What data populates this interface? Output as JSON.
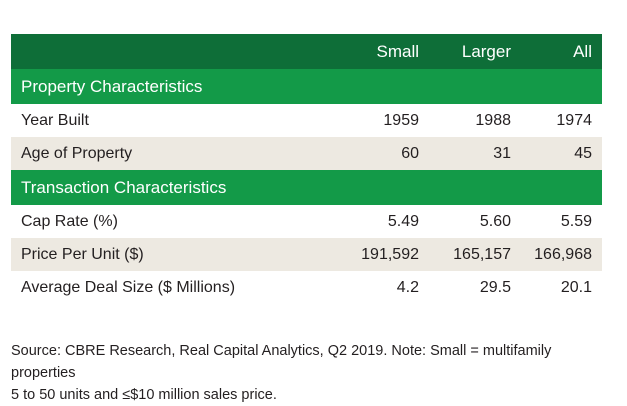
{
  "columns": [
    "Small",
    "Larger",
    "All"
  ],
  "sections": [
    {
      "title": "Property Characteristics",
      "rows": [
        {
          "label": "Year Built",
          "values": [
            "1959",
            "1988",
            "1974"
          ]
        },
        {
          "label": "Age of Property",
          "values": [
            "60",
            "31",
            "45"
          ]
        }
      ]
    },
    {
      "title": "Transaction Characteristics",
      "rows": [
        {
          "label": "Cap Rate (%)",
          "values": [
            "5.49",
            "5.60",
            "5.59"
          ]
        },
        {
          "label": "Price Per Unit ($)",
          "values": [
            "191,592",
            "165,157",
            "166,968"
          ]
        },
        {
          "label": "Average Deal Size ($ Millions)",
          "values": [
            "4.2",
            "29.5",
            "20.1"
          ]
        }
      ]
    }
  ],
  "footnote": {
    "line1": "Source: CBRE Research, Real Capital Analytics, Q2 2019. Note: Small = multifamily properties",
    "line2": "5 to 50 units and ≤$10 million sales price."
  },
  "colors": {
    "header_bg": "#0e6e38",
    "section_bg": "#139a48",
    "shaded_row_bg": "#ede9e1"
  }
}
